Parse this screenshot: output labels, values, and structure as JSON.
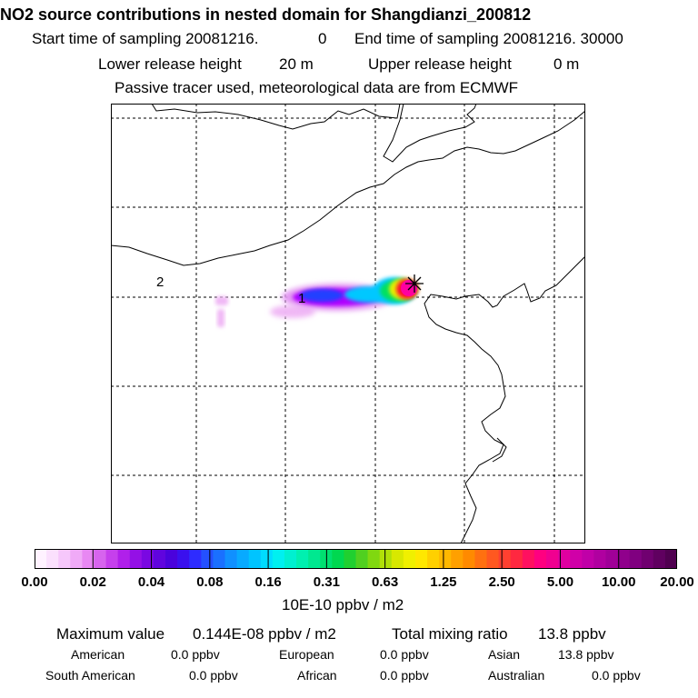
{
  "title": "NO2 source contributions in nested domain for Shangdianzi_200812",
  "header": {
    "start_label": "Start time of sampling 20081216.",
    "start_value": "0",
    "end_label": "End time of sampling 20081216. 30000",
    "lower_label": "Lower release height",
    "lower_value": "20 m",
    "upper_label": "Upper release height",
    "upper_value": "0 m",
    "note": "Passive tracer used, meteorological data are from ECMWF"
  },
  "map": {
    "labels": [
      "2",
      "1"
    ],
    "colors": {
      "coast": "#000000",
      "grid": "#000000",
      "plume_light": "#f0b8f5",
      "plume_violet": "#b000ff",
      "plume_blue": "#2040ff",
      "plume_cyan": "#00c8ff",
      "plume_green": "#00e060",
      "plume_yellow": "#e8f000",
      "plume_red": "#ff1030",
      "plume_magenta": "#ff00a0"
    },
    "source_marker": "star-icon"
  },
  "colorbar": {
    "ticks": [
      "0.00",
      "0.02",
      "0.04",
      "0.08",
      "0.16",
      "0.31",
      "0.63",
      "1.25",
      "2.50",
      "5.00",
      "10.00",
      "20.00"
    ],
    "colors": [
      "#fff2ff",
      "#fbe0fd",
      "#f6c7fb",
      "#f0aaf7",
      "#e888f3",
      "#d764ee",
      "#c640ec",
      "#b020ea",
      "#9410e6",
      "#7a08e2",
      "#6004de",
      "#4a02dc",
      "#3a10ee",
      "#2e2cff",
      "#2450ff",
      "#1a70ff",
      "#1090ff",
      "#08aaff",
      "#00c4ff",
      "#00dcff",
      "#00f0f0",
      "#00f0d0",
      "#00f0b0",
      "#00e890",
      "#00e070",
      "#00d850",
      "#20d030",
      "#50d020",
      "#80d810",
      "#b0e008",
      "#d8e800",
      "#f0f000",
      "#ffe800",
      "#ffd000",
      "#ffb800",
      "#ffa000",
      "#ff8a00",
      "#ff7010",
      "#ff5820",
      "#ff4030",
      "#ff2840",
      "#ff1060",
      "#ff0080",
      "#f00090",
      "#e000a0",
      "#d000a8",
      "#c000a8",
      "#b000a0",
      "#a00098",
      "#90008c",
      "#800080",
      "#700070",
      "#600060",
      "#500050"
    ],
    "units": "10E-10 ppbv / m2"
  },
  "summary": {
    "max_label": "Maximum value",
    "max_value": "0.144E-08 ppbv / m2",
    "total_label": "Total mixing ratio",
    "total_value": "13.8 ppbv",
    "american_label": "American",
    "american_value": "0.0 ppbv",
    "european_label": "European",
    "european_value": "0.0 ppbv",
    "asian_label": "Asian",
    "asian_value": "13.8 ppbv",
    "south_american_label": "South American",
    "south_american_value": "0.0 ppbv",
    "african_label": "African",
    "african_value": "0.0 ppbv",
    "australian_label": "Australian",
    "australian_value": "0.0 ppbv"
  }
}
